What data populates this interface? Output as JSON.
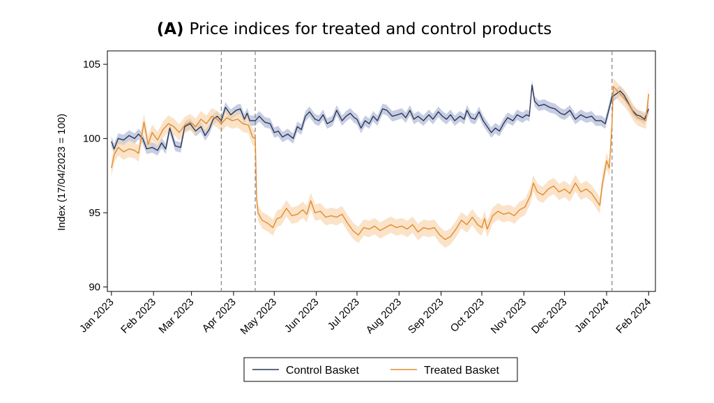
{
  "chart_data": {
    "type": "line",
    "title_prefix": "(A)",
    "title": "Price indices for treated and control products",
    "xlabel": "",
    "ylabel": "Index (17/04/2023 = 100)",
    "ylim": [
      89.7,
      105.9
    ],
    "yticks": [
      90,
      95,
      100,
      105
    ],
    "xlim": [
      "2022-12-29",
      "2024-02-06"
    ],
    "xticks": [
      {
        "date": "2023-01-01",
        "label": "Jan 2023"
      },
      {
        "date": "2023-02-01",
        "label": "Feb 2023"
      },
      {
        "date": "2023-03-01",
        "label": "Mar 2023"
      },
      {
        "date": "2023-04-01",
        "label": "Apr 2023"
      },
      {
        "date": "2023-05-01",
        "label": "May 2023"
      },
      {
        "date": "2023-06-01",
        "label": "Jun 2023"
      },
      {
        "date": "2023-07-01",
        "label": "Jul 2023"
      },
      {
        "date": "2023-08-01",
        "label": "Aug 2023"
      },
      {
        "date": "2023-09-01",
        "label": "Sep 2023"
      },
      {
        "date": "2023-10-01",
        "label": "Oct 2023"
      },
      {
        "date": "2023-11-01",
        "label": "Nov 2023"
      },
      {
        "date": "2023-12-01",
        "label": "Dec 2023"
      },
      {
        "date": "2024-01-01",
        "label": "Jan 2024"
      },
      {
        "date": "2024-02-01",
        "label": "Feb 2024"
      }
    ],
    "reference_lines": [
      "2023-03-23",
      "2023-04-17",
      "2024-01-05"
    ],
    "grid": false,
    "legend_position": "bottom",
    "series": [
      {
        "name": "Control Basket",
        "color": "#2a3656",
        "band_color": "#a9b3d4",
        "band_halfwidth": 0.35,
        "points": [
          [
            "2023-01-01",
            99.8
          ],
          [
            "2023-01-03",
            99.3
          ],
          [
            "2023-01-06",
            100.0
          ],
          [
            "2023-01-10",
            99.9
          ],
          [
            "2023-01-14",
            100.2
          ],
          [
            "2023-01-18",
            100.0
          ],
          [
            "2023-01-21",
            100.3
          ],
          [
            "2023-01-24",
            100.0
          ],
          [
            "2023-01-27",
            99.3
          ],
          [
            "2023-01-31",
            99.4
          ],
          [
            "2023-02-04",
            99.2
          ],
          [
            "2023-02-07",
            99.7
          ],
          [
            "2023-02-10",
            99.3
          ],
          [
            "2023-02-13",
            100.7
          ],
          [
            "2023-02-17",
            99.5
          ],
          [
            "2023-02-21",
            99.4
          ],
          [
            "2023-02-24",
            100.8
          ],
          [
            "2023-02-28",
            101.0
          ],
          [
            "2023-03-04",
            100.5
          ],
          [
            "2023-03-08",
            100.8
          ],
          [
            "2023-03-11",
            100.2
          ],
          [
            "2023-03-14",
            100.6
          ],
          [
            "2023-03-17",
            101.3
          ],
          [
            "2023-03-20",
            101.5
          ],
          [
            "2023-03-23",
            101.2
          ],
          [
            "2023-03-26",
            102.1
          ],
          [
            "2023-03-30",
            101.6
          ],
          [
            "2023-04-03",
            101.9
          ],
          [
            "2023-04-06",
            102.0
          ],
          [
            "2023-04-09",
            101.3
          ],
          [
            "2023-04-11",
            101.7
          ],
          [
            "2023-04-13",
            101.2
          ],
          [
            "2023-04-17",
            101.2
          ],
          [
            "2023-04-20",
            101.5
          ],
          [
            "2023-04-24",
            101.1
          ],
          [
            "2023-04-28",
            101.0
          ],
          [
            "2023-05-01",
            100.4
          ],
          [
            "2023-05-04",
            100.5
          ],
          [
            "2023-05-07",
            100.1
          ],
          [
            "2023-05-11",
            100.3
          ],
          [
            "2023-05-15",
            100.0
          ],
          [
            "2023-05-18",
            100.8
          ],
          [
            "2023-05-21",
            100.6
          ],
          [
            "2023-05-24",
            101.5
          ],
          [
            "2023-05-27",
            101.8
          ],
          [
            "2023-05-31",
            101.3
          ],
          [
            "2023-06-03",
            101.2
          ],
          [
            "2023-06-06",
            101.6
          ],
          [
            "2023-06-09",
            101.0
          ],
          [
            "2023-06-13",
            101.2
          ],
          [
            "2023-06-16",
            101.9
          ],
          [
            "2023-06-20",
            101.2
          ],
          [
            "2023-06-23",
            101.5
          ],
          [
            "2023-06-26",
            101.7
          ],
          [
            "2023-06-29",
            101.4
          ],
          [
            "2023-07-01",
            101.3
          ],
          [
            "2023-07-04",
            100.7
          ],
          [
            "2023-07-07",
            101.2
          ],
          [
            "2023-07-10",
            101.0
          ],
          [
            "2023-07-13",
            101.5
          ],
          [
            "2023-07-16",
            101.2
          ],
          [
            "2023-07-20",
            102.0
          ],
          [
            "2023-07-23",
            101.9
          ],
          [
            "2023-07-27",
            101.5
          ],
          [
            "2023-07-31",
            101.6
          ],
          [
            "2023-08-03",
            101.7
          ],
          [
            "2023-08-06",
            101.4
          ],
          [
            "2023-08-09",
            101.9
          ],
          [
            "2023-08-12",
            101.3
          ],
          [
            "2023-08-15",
            101.5
          ],
          [
            "2023-08-19",
            101.2
          ],
          [
            "2023-08-23",
            101.6
          ],
          [
            "2023-08-26",
            101.3
          ],
          [
            "2023-08-30",
            101.8
          ],
          [
            "2023-09-02",
            101.5
          ],
          [
            "2023-09-05",
            101.3
          ],
          [
            "2023-09-08",
            101.6
          ],
          [
            "2023-09-11",
            101.2
          ],
          [
            "2023-09-15",
            101.5
          ],
          [
            "2023-09-18",
            101.3
          ],
          [
            "2023-09-20",
            101.9
          ],
          [
            "2023-09-23",
            101.4
          ],
          [
            "2023-09-26",
            101.3
          ],
          [
            "2023-09-29",
            101.8
          ],
          [
            "2023-10-02",
            101.2
          ],
          [
            "2023-10-05",
            100.8
          ],
          [
            "2023-10-08",
            100.4
          ],
          [
            "2023-10-11",
            100.7
          ],
          [
            "2023-10-14",
            100.5
          ],
          [
            "2023-10-17",
            101.0
          ],
          [
            "2023-10-20",
            101.4
          ],
          [
            "2023-10-24",
            101.2
          ],
          [
            "2023-10-27",
            101.6
          ],
          [
            "2023-10-31",
            101.4
          ],
          [
            "2023-11-03",
            101.6
          ],
          [
            "2023-11-05",
            101.5
          ],
          [
            "2023-11-07",
            103.6
          ],
          [
            "2023-11-09",
            102.5
          ],
          [
            "2023-11-12",
            102.2
          ],
          [
            "2023-11-16",
            102.3
          ],
          [
            "2023-11-20",
            102.1
          ],
          [
            "2023-11-24",
            102.0
          ],
          [
            "2023-11-28",
            101.7
          ],
          [
            "2023-12-01",
            101.6
          ],
          [
            "2023-12-05",
            101.9
          ],
          [
            "2023-12-09",
            101.3
          ],
          [
            "2023-12-13",
            101.6
          ],
          [
            "2023-12-17",
            101.4
          ],
          [
            "2023-12-21",
            101.5
          ],
          [
            "2023-12-24",
            101.2
          ],
          [
            "2023-12-28",
            101.2
          ],
          [
            "2023-12-31",
            101.0
          ],
          [
            "2024-01-02",
            101.7
          ],
          [
            "2024-01-05",
            102.8
          ],
          [
            "2024-01-08",
            103.0
          ],
          [
            "2024-01-11",
            103.2
          ],
          [
            "2024-01-14",
            102.9
          ],
          [
            "2024-01-17",
            102.4
          ],
          [
            "2024-01-20",
            101.9
          ],
          [
            "2024-01-23",
            101.6
          ],
          [
            "2024-01-26",
            101.5
          ],
          [
            "2024-01-29",
            101.3
          ],
          [
            "2024-02-01",
            102.0
          ]
        ]
      },
      {
        "name": "Treated Basket",
        "color": "#e38b2c",
        "band_color": "#f8d4ab",
        "band_halfwidth": 0.55,
        "points": [
          [
            "2023-01-01",
            98.0
          ],
          [
            "2023-01-03",
            98.9
          ],
          [
            "2023-01-06",
            99.4
          ],
          [
            "2023-01-10",
            99.1
          ],
          [
            "2023-01-14",
            99.3
          ],
          [
            "2023-01-18",
            99.2
          ],
          [
            "2023-01-21",
            99.0
          ],
          [
            "2023-01-25",
            101.1
          ],
          [
            "2023-01-28",
            99.6
          ],
          [
            "2023-01-31",
            100.4
          ],
          [
            "2023-02-04",
            99.9
          ],
          [
            "2023-02-08",
            100.6
          ],
          [
            "2023-02-12",
            101.0
          ],
          [
            "2023-02-16",
            100.8
          ],
          [
            "2023-02-20",
            100.4
          ],
          [
            "2023-02-24",
            100.9
          ],
          [
            "2023-02-28",
            101.1
          ],
          [
            "2023-03-04",
            100.8
          ],
          [
            "2023-03-08",
            101.3
          ],
          [
            "2023-03-12",
            101.0
          ],
          [
            "2023-03-16",
            101.5
          ],
          [
            "2023-03-20",
            101.3
          ],
          [
            "2023-03-23",
            101.0
          ],
          [
            "2023-03-27",
            101.4
          ],
          [
            "2023-03-31",
            101.2
          ],
          [
            "2023-04-04",
            101.3
          ],
          [
            "2023-04-08",
            101.0
          ],
          [
            "2023-04-12",
            100.9
          ],
          [
            "2023-04-15",
            100.1
          ],
          [
            "2023-04-17",
            100.0
          ],
          [
            "2023-04-18",
            96.0
          ],
          [
            "2023-04-19",
            95.0
          ],
          [
            "2023-04-22",
            94.5
          ],
          [
            "2023-04-26",
            94.3
          ],
          [
            "2023-04-30",
            94.0
          ],
          [
            "2023-05-03",
            94.6
          ],
          [
            "2023-05-06",
            94.7
          ],
          [
            "2023-05-10",
            95.3
          ],
          [
            "2023-05-14",
            94.8
          ],
          [
            "2023-05-18",
            94.9
          ],
          [
            "2023-05-22",
            95.2
          ],
          [
            "2023-05-25",
            94.9
          ],
          [
            "2023-05-28",
            95.8
          ],
          [
            "2023-05-31",
            95.0
          ],
          [
            "2023-06-04",
            95.1
          ],
          [
            "2023-06-08",
            94.7
          ],
          [
            "2023-06-12",
            94.8
          ],
          [
            "2023-06-16",
            94.7
          ],
          [
            "2023-06-20",
            94.9
          ],
          [
            "2023-06-24",
            94.3
          ],
          [
            "2023-06-28",
            93.8
          ],
          [
            "2023-07-02",
            93.5
          ],
          [
            "2023-07-06",
            94.0
          ],
          [
            "2023-07-10",
            93.9
          ],
          [
            "2023-07-14",
            94.1
          ],
          [
            "2023-07-18",
            93.8
          ],
          [
            "2023-07-22",
            94.0
          ],
          [
            "2023-07-26",
            94.2
          ],
          [
            "2023-07-30",
            94.0
          ],
          [
            "2023-08-03",
            94.1
          ],
          [
            "2023-08-07",
            93.9
          ],
          [
            "2023-08-11",
            94.2
          ],
          [
            "2023-08-15",
            93.7
          ],
          [
            "2023-08-19",
            94.0
          ],
          [
            "2023-08-23",
            93.9
          ],
          [
            "2023-08-27",
            94.0
          ],
          [
            "2023-08-31",
            93.5
          ],
          [
            "2023-09-04",
            93.2
          ],
          [
            "2023-09-08",
            93.4
          ],
          [
            "2023-09-12",
            93.9
          ],
          [
            "2023-09-16",
            94.5
          ],
          [
            "2023-09-20",
            94.2
          ],
          [
            "2023-09-24",
            94.7
          ],
          [
            "2023-09-28",
            94.2
          ],
          [
            "2023-10-01",
            94.0
          ],
          [
            "2023-10-03",
            94.6
          ],
          [
            "2023-10-05",
            93.9
          ],
          [
            "2023-10-09",
            94.8
          ],
          [
            "2023-10-13",
            95.1
          ],
          [
            "2023-10-17",
            94.9
          ],
          [
            "2023-10-21",
            95.0
          ],
          [
            "2023-10-25",
            94.8
          ],
          [
            "2023-10-29",
            95.2
          ],
          [
            "2023-11-02",
            95.4
          ],
          [
            "2023-11-06",
            96.2
          ],
          [
            "2023-11-08",
            97.0
          ],
          [
            "2023-11-11",
            96.4
          ],
          [
            "2023-11-15",
            96.2
          ],
          [
            "2023-11-19",
            96.6
          ],
          [
            "2023-11-23",
            96.8
          ],
          [
            "2023-11-27",
            96.4
          ],
          [
            "2023-12-01",
            96.6
          ],
          [
            "2023-12-05",
            96.3
          ],
          [
            "2023-12-09",
            97.0
          ],
          [
            "2023-12-13",
            96.4
          ],
          [
            "2023-12-17",
            96.6
          ],
          [
            "2023-12-21",
            96.3
          ],
          [
            "2023-12-24",
            95.9
          ],
          [
            "2023-12-27",
            95.5
          ],
          [
            "2023-12-29",
            97.0
          ],
          [
            "2024-01-01",
            98.5
          ],
          [
            "2024-01-03",
            98.0
          ],
          [
            "2024-01-05",
            101.0
          ],
          [
            "2024-01-06",
            103.5
          ],
          [
            "2024-01-09",
            103.2
          ],
          [
            "2024-01-12",
            102.9
          ],
          [
            "2024-01-15",
            102.6
          ],
          [
            "2024-01-18",
            102.2
          ],
          [
            "2024-01-21",
            101.7
          ],
          [
            "2024-01-24",
            101.4
          ],
          [
            "2024-01-27",
            101.3
          ],
          [
            "2024-01-30",
            101.2
          ],
          [
            "2024-02-01",
            103.0
          ]
        ]
      }
    ]
  }
}
